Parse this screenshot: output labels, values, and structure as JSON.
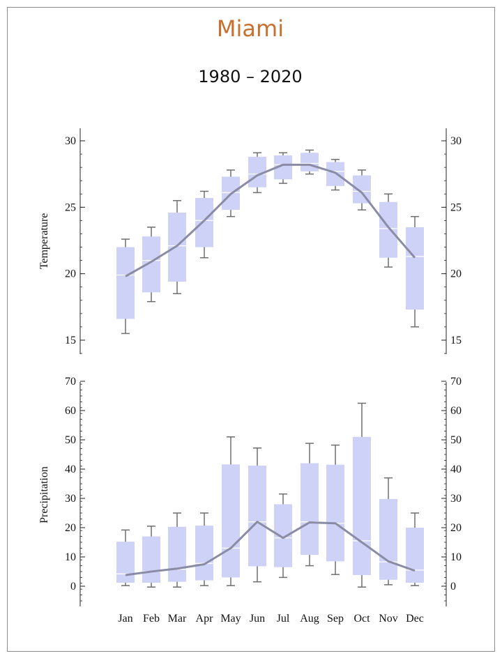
{
  "title": "Miami",
  "subtitle": "1980 – 2020",
  "colors": {
    "title": "#c8702f",
    "box_fill": "#cdd2f6",
    "median": "#ffffff",
    "line": "#8a8ca6",
    "whisker": "#6e6e6e",
    "axis": "#222222"
  },
  "chart_data": [
    {
      "type": "box",
      "ylabel": "Temperature",
      "ylim": [
        14,
        31
      ],
      "yticks": [
        15,
        20,
        25,
        30
      ],
      "categories": [
        "Jan",
        "Feb",
        "Mar",
        "Apr",
        "May",
        "Jun",
        "Jul",
        "Aug",
        "Sep",
        "Oct",
        "Nov",
        "Dec"
      ],
      "whisker_low": [
        15.5,
        17.9,
        18.5,
        21.2,
        24.3,
        26.1,
        26.8,
        27.5,
        26.3,
        24.8,
        20.5,
        16.0
      ],
      "q1": [
        16.6,
        18.6,
        19.4,
        22.0,
        24.8,
        26.5,
        27.1,
        27.7,
        26.6,
        25.3,
        21.2,
        17.3
      ],
      "median": [
        19.9,
        21.0,
        22.1,
        24.0,
        26.1,
        27.5,
        28.2,
        28.3,
        27.7,
        26.2,
        23.4,
        21.3
      ],
      "q3": [
        22.0,
        22.8,
        24.6,
        25.7,
        27.3,
        28.8,
        28.9,
        29.1,
        28.4,
        27.4,
        25.4,
        23.5
      ],
      "whisker_high": [
        22.6,
        23.5,
        25.5,
        26.2,
        27.8,
        29.1,
        29.1,
        29.3,
        28.6,
        27.8,
        26.0,
        24.3
      ],
      "mean_line": [
        19.8,
        20.9,
        22.1,
        24.0,
        26.0,
        27.4,
        28.2,
        28.2,
        27.6,
        26.1,
        23.5,
        21.2
      ]
    },
    {
      "type": "box",
      "ylabel": "Precipitation",
      "ylim": [
        -7,
        70
      ],
      "yticks": [
        0,
        10,
        20,
        30,
        40,
        50,
        60,
        70
      ],
      "categories": [
        "Jan",
        "Feb",
        "Mar",
        "Apr",
        "May",
        "Jun",
        "Jul",
        "Aug",
        "Sep",
        "Oct",
        "Nov",
        "Dec"
      ],
      "whisker_low": [
        0.2,
        -0.3,
        -0.3,
        0.2,
        0.2,
        1.5,
        3.0,
        7.0,
        4.0,
        -0.3,
        0.5,
        0.2
      ],
      "q1": [
        1.2,
        1.2,
        1.5,
        2.0,
        3.0,
        6.8,
        6.5,
        10.7,
        8.5,
        3.8,
        2.2,
        1.2
      ],
      "median": [
        4.2,
        5.0,
        5.8,
        7.8,
        13.0,
        22.0,
        16.5,
        22.0,
        21.5,
        15.5,
        8.3,
        5.5
      ],
      "q3": [
        15.2,
        17.0,
        20.3,
        20.7,
        41.6,
        41.2,
        28.0,
        42.0,
        41.5,
        51.0,
        29.8,
        20.0
      ],
      "whisker_high": [
        19.2,
        20.5,
        25.0,
        25.0,
        51.0,
        47.2,
        31.5,
        48.8,
        48.2,
        62.5,
        37.0,
        25.0
      ],
      "mean_line": [
        3.8,
        5.0,
        6.0,
        7.5,
        13.0,
        22.0,
        16.5,
        21.8,
        21.5,
        15.0,
        8.5,
        5.3
      ]
    }
  ]
}
